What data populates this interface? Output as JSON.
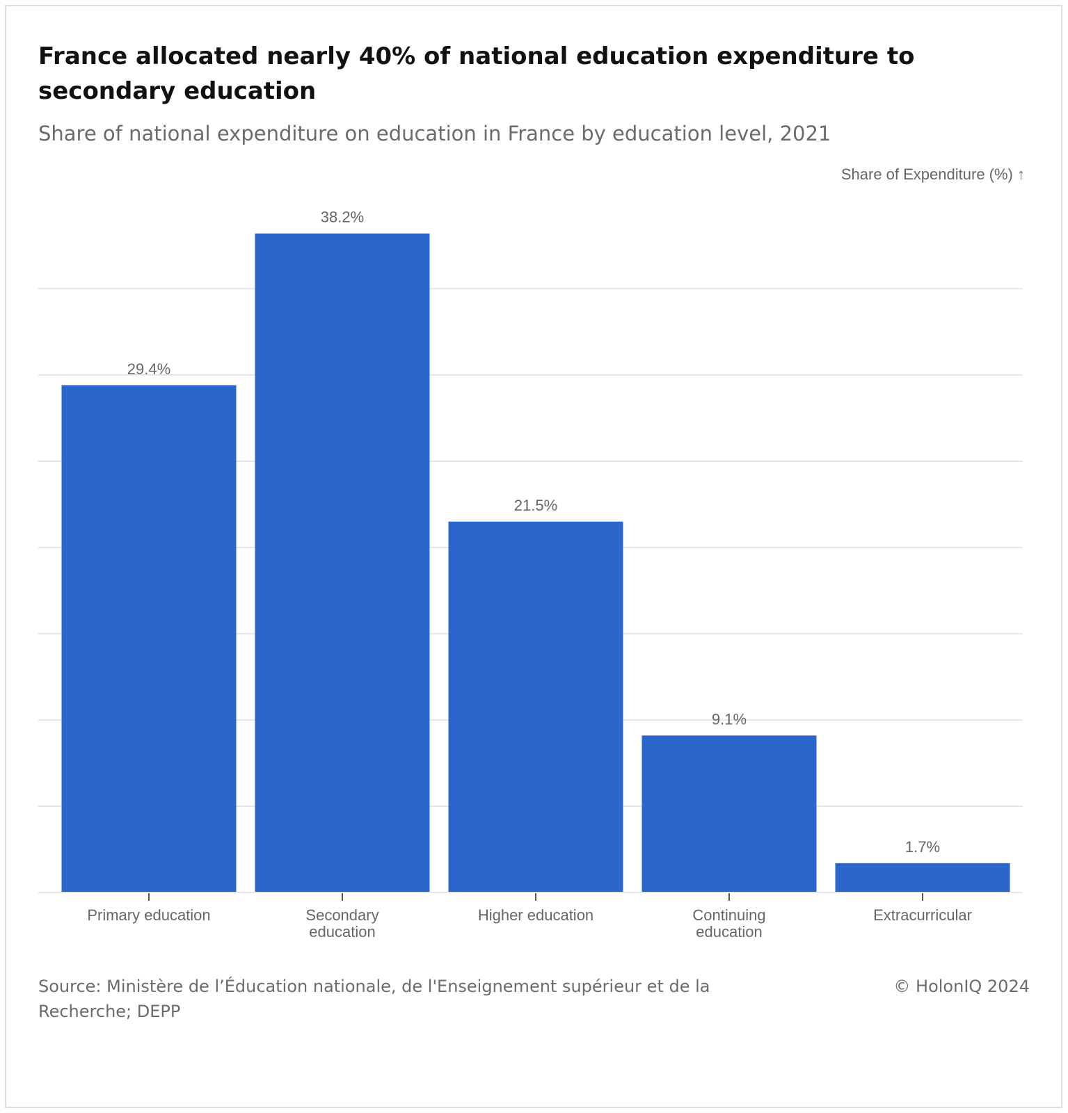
{
  "header": {
    "title": "France allocated nearly 40% of national education expenditure to secondary education",
    "subtitle": "Share of national expenditure on education in France by education level, 2021"
  },
  "footer": {
    "source": "Source: Ministère de l’Éducation nationale, de l'Enseignement supérieur et de la Recherche; DEPP",
    "copyright": "© HolonIQ 2024"
  },
  "colors": {
    "bar": "#2B66CC",
    "grid": "#e6e6e6",
    "label": "#666666"
  },
  "chart_data": {
    "type": "bar",
    "title": "France allocated nearly 40% of national education expenditure to secondary education",
    "subtitle": "Share of national expenditure on education in France by education level, 2021",
    "ylabel": "Share of Expenditure (%) ↑",
    "xlabel": "",
    "categories": [
      [
        "Primary education"
      ],
      [
        "Secondary",
        "education"
      ],
      [
        "Higher education"
      ],
      [
        "Continuing",
        "education"
      ],
      [
        "Extracurricular"
      ]
    ],
    "values": [
      29.4,
      38.2,
      21.5,
      9.1,
      1.7
    ],
    "data_labels": [
      "29.4%",
      "38.2%",
      "21.5%",
      "9.1%",
      "1.7%"
    ],
    "ylim": [
      0,
      40
    ],
    "gridlines": [
      0,
      5,
      10,
      15,
      20,
      25,
      30,
      35
    ],
    "y_tick_labels_shown": false,
    "grid": true,
    "legend": "none"
  }
}
